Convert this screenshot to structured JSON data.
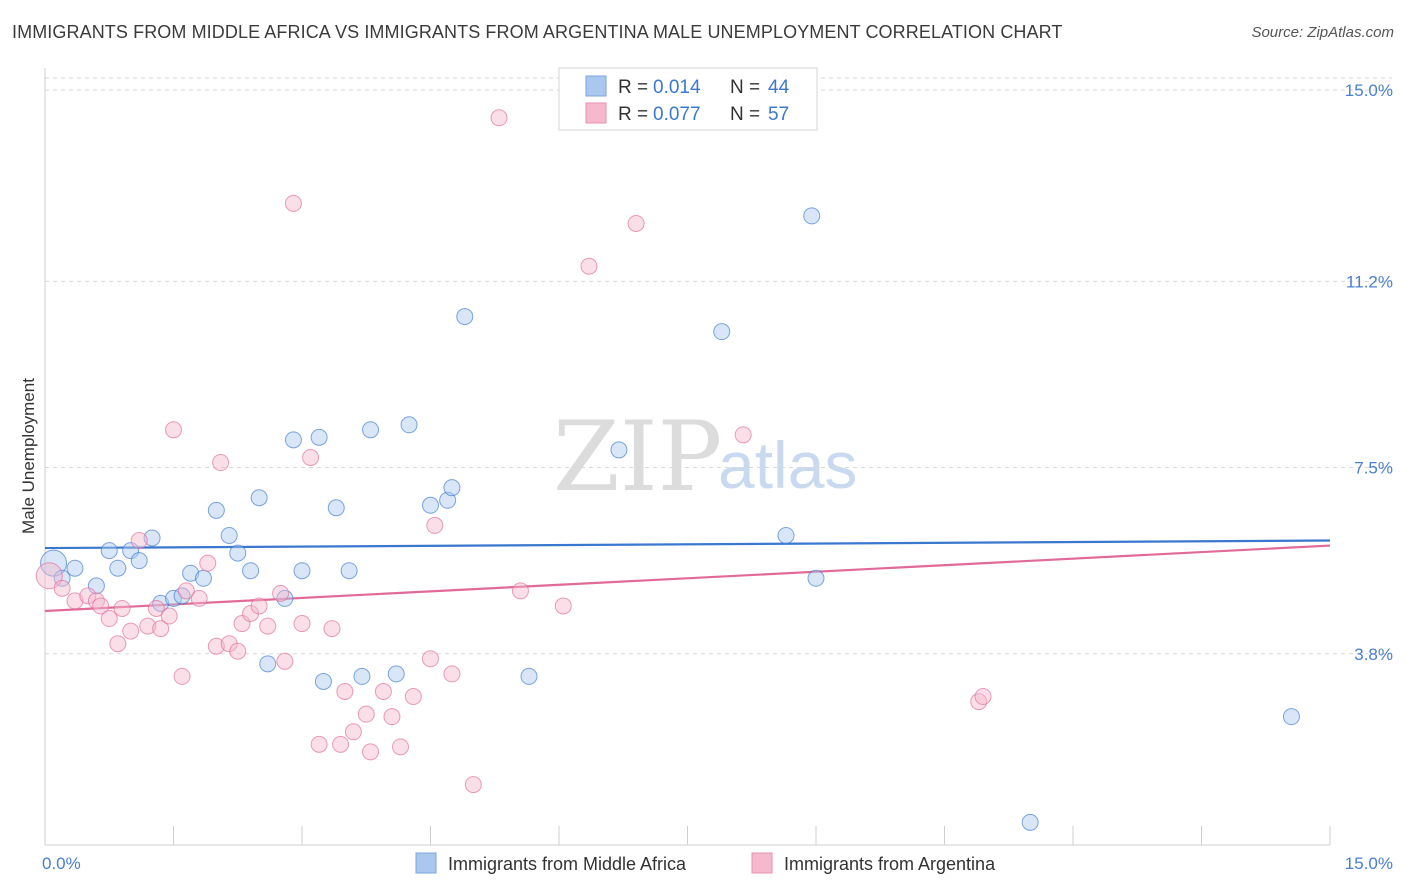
{
  "title": "IMMIGRANTS FROM MIDDLE AFRICA VS IMMIGRANTS FROM ARGENTINA MALE UNEMPLOYMENT CORRELATION CHART",
  "source": "Source: ZipAtlas.com",
  "watermark": {
    "zip": "ZIP",
    "atlas": "atlas"
  },
  "colors": {
    "blue": "#3a78d0",
    "blue_fill": "#aac8ee",
    "pink": "#e06a98",
    "pink_fill": "#f5b8cc",
    "grid": "#d8d8d8",
    "tick_text": "#4a7fd0"
  },
  "legend": {
    "r_label": "R =",
    "n_label": "N =",
    "items": [
      {
        "name": "Immigrants from Middle Africa",
        "r": "0.014",
        "n": "44"
      },
      {
        "name": "Immigrants from Argentina",
        "r": "0.077",
        "n": "57"
      }
    ]
  },
  "chart_data": {
    "type": "scatter",
    "title": "IMMIGRANTS FROM MIDDLE AFRICA VS IMMIGRANTS FROM ARGENTINA MALE UNEMPLOYMENT CORRELATION CHART",
    "xlabel": "",
    "ylabel": "Male Unemployment",
    "xlim": [
      0,
      15
    ],
    "ylim": [
      0,
      15.3
    ],
    "x_tick_labels": [
      "0.0%",
      "15.0%"
    ],
    "y_ticks": [
      3.8,
      7.5,
      11.2,
      15.0
    ],
    "y_tick_labels": [
      "3.8%",
      "7.5%",
      "11.2%",
      "15.0%"
    ],
    "series": [
      {
        "name": "Immigrants from Middle Africa",
        "color": "#3a78d0",
        "trend": {
          "x": [
            0,
            15
          ],
          "y": [
            5.9,
            6.05
          ]
        },
        "points": [
          {
            "x": 0.1,
            "y": 5.6,
            "big": true
          },
          {
            "x": 0.2,
            "y": 5.3
          },
          {
            "x": 0.35,
            "y": 5.5
          },
          {
            "x": 0.6,
            "y": 5.15
          },
          {
            "x": 0.75,
            "y": 5.85
          },
          {
            "x": 0.85,
            "y": 5.5
          },
          {
            "x": 1.0,
            "y": 5.85
          },
          {
            "x": 1.1,
            "y": 5.65
          },
          {
            "x": 1.25,
            "y": 6.1
          },
          {
            "x": 1.35,
            "y": 4.8
          },
          {
            "x": 1.5,
            "y": 4.9
          },
          {
            "x": 1.6,
            "y": 4.95
          },
          {
            "x": 1.7,
            "y": 5.4
          },
          {
            "x": 1.85,
            "y": 5.3
          },
          {
            "x": 2.0,
            "y": 6.65
          },
          {
            "x": 2.15,
            "y": 6.15
          },
          {
            "x": 2.25,
            "y": 5.8
          },
          {
            "x": 2.4,
            "y": 5.45
          },
          {
            "x": 2.5,
            "y": 6.9
          },
          {
            "x": 2.6,
            "y": 3.6
          },
          {
            "x": 2.8,
            "y": 4.9
          },
          {
            "x": 2.9,
            "y": 8.05
          },
          {
            "x": 3.0,
            "y": 5.45
          },
          {
            "x": 3.2,
            "y": 8.1
          },
          {
            "x": 3.25,
            "y": 3.25
          },
          {
            "x": 3.4,
            "y": 6.7
          },
          {
            "x": 3.55,
            "y": 5.45
          },
          {
            "x": 3.7,
            "y": 3.35
          },
          {
            "x": 3.8,
            "y": 8.25
          },
          {
            "x": 4.1,
            "y": 3.4
          },
          {
            "x": 4.25,
            "y": 8.35
          },
          {
            "x": 4.5,
            "y": 6.75
          },
          {
            "x": 4.7,
            "y": 6.85
          },
          {
            "x": 4.75,
            "y": 7.1
          },
          {
            "x": 4.9,
            "y": 10.5
          },
          {
            "x": 5.65,
            "y": 3.35
          },
          {
            "x": 6.7,
            "y": 7.85
          },
          {
            "x": 7.9,
            "y": 10.2
          },
          {
            "x": 8.65,
            "y": 6.15
          },
          {
            "x": 8.95,
            "y": 12.5
          },
          {
            "x": 9.0,
            "y": 5.3
          },
          {
            "x": 11.5,
            "y": 0.45
          },
          {
            "x": 14.55,
            "y": 2.55
          }
        ]
      },
      {
        "name": "Immigrants from Argentina",
        "color": "#e06a98",
        "trend": {
          "x": [
            0,
            15
          ],
          "y": [
            4.65,
            5.95
          ]
        },
        "points": [
          {
            "x": 0.05,
            "y": 5.35,
            "big": true
          },
          {
            "x": 0.2,
            "y": 5.1
          },
          {
            "x": 0.35,
            "y": 4.85
          },
          {
            "x": 0.5,
            "y": 4.95
          },
          {
            "x": 0.6,
            "y": 4.85
          },
          {
            "x": 0.65,
            "y": 4.75
          },
          {
            "x": 0.75,
            "y": 4.5
          },
          {
            "x": 0.85,
            "y": 4.0
          },
          {
            "x": 0.9,
            "y": 4.7
          },
          {
            "x": 1.0,
            "y": 4.25
          },
          {
            "x": 1.1,
            "y": 6.05
          },
          {
            "x": 1.2,
            "y": 4.35
          },
          {
            "x": 1.3,
            "y": 4.7
          },
          {
            "x": 1.35,
            "y": 4.3
          },
          {
            "x": 1.45,
            "y": 4.55
          },
          {
            "x": 1.5,
            "y": 8.25
          },
          {
            "x": 1.6,
            "y": 3.35
          },
          {
            "x": 1.65,
            "y": 5.05
          },
          {
            "x": 1.8,
            "y": 4.9
          },
          {
            "x": 1.9,
            "y": 5.6
          },
          {
            "x": 2.0,
            "y": 3.95
          },
          {
            "x": 2.05,
            "y": 7.6
          },
          {
            "x": 2.15,
            "y": 4.0
          },
          {
            "x": 2.25,
            "y": 3.85
          },
          {
            "x": 2.3,
            "y": 4.4
          },
          {
            "x": 2.4,
            "y": 4.6
          },
          {
            "x": 2.5,
            "y": 4.75
          },
          {
            "x": 2.6,
            "y": 4.35
          },
          {
            "x": 2.75,
            "y": 5.0
          },
          {
            "x": 2.8,
            "y": 3.65
          },
          {
            "x": 2.9,
            "y": 12.75
          },
          {
            "x": 3.0,
            "y": 4.4
          },
          {
            "x": 3.1,
            "y": 7.7
          },
          {
            "x": 3.2,
            "y": 2.0
          },
          {
            "x": 3.35,
            "y": 4.3
          },
          {
            "x": 3.45,
            "y": 2.0
          },
          {
            "x": 3.5,
            "y": 3.05
          },
          {
            "x": 3.6,
            "y": 2.25
          },
          {
            "x": 3.75,
            "y": 2.6
          },
          {
            "x": 3.8,
            "y": 1.85
          },
          {
            "x": 3.95,
            "y": 3.05
          },
          {
            "x": 4.05,
            "y": 2.55
          },
          {
            "x": 4.15,
            "y": 1.95
          },
          {
            "x": 4.3,
            "y": 2.95
          },
          {
            "x": 4.5,
            "y": 3.7
          },
          {
            "x": 4.55,
            "y": 6.35
          },
          {
            "x": 4.75,
            "y": 3.4
          },
          {
            "x": 5.0,
            "y": 1.2
          },
          {
            "x": 5.3,
            "y": 14.45
          },
          {
            "x": 5.55,
            "y": 5.05
          },
          {
            "x": 6.05,
            "y": 4.75
          },
          {
            "x": 6.35,
            "y": 11.5
          },
          {
            "x": 6.9,
            "y": 12.35
          },
          {
            "x": 8.15,
            "y": 8.15
          },
          {
            "x": 10.9,
            "y": 2.85
          },
          {
            "x": 10.95,
            "y": 2.95
          }
        ]
      }
    ]
  }
}
